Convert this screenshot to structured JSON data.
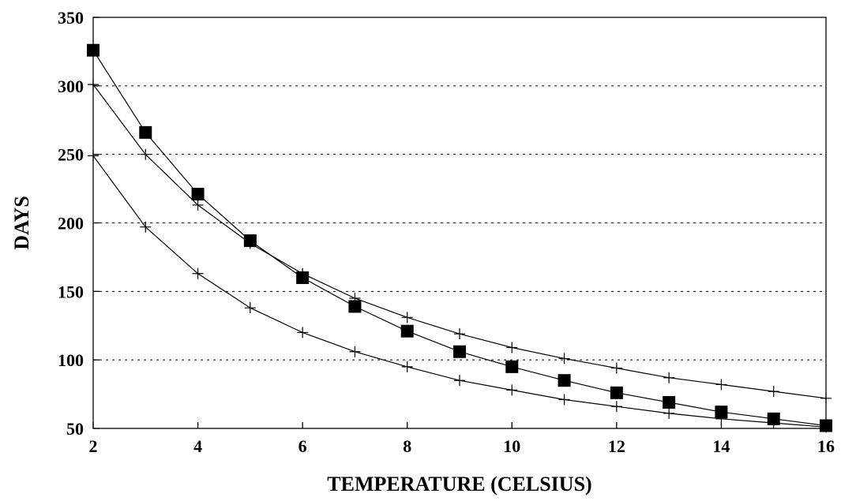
{
  "chart_data": {
    "type": "line",
    "xlabel": "TEMPERATURE (CELSIUS)",
    "ylabel": "DAYS",
    "xlim": [
      2,
      16
    ],
    "ylim": [
      50,
      350
    ],
    "xticks": [
      2,
      4,
      6,
      8,
      10,
      12,
      14,
      16
    ],
    "yticks": [
      50,
      100,
      150,
      200,
      250,
      300,
      350
    ],
    "grid": {
      "horizontal": true,
      "vertical": false,
      "style": "dotted"
    },
    "series": [
      {
        "marker": "square",
        "x": [
          2,
          3,
          4,
          5,
          6,
          7,
          8,
          9,
          10,
          11,
          12,
          13,
          14,
          15,
          16
        ],
        "y": [
          326,
          266,
          221,
          187,
          160,
          139,
          121,
          106,
          95,
          85,
          76,
          69,
          62,
          57,
          52
        ]
      },
      {
        "marker": "plus",
        "x": [
          2,
          3,
          4,
          5,
          6,
          7,
          8,
          9,
          10,
          11,
          12,
          13,
          14,
          15,
          16
        ],
        "y": [
          301,
          250,
          213,
          185,
          163,
          145,
          131,
          119,
          109,
          101,
          94,
          87,
          82,
          77,
          72
        ]
      },
      {
        "marker": "plus",
        "x": [
          2,
          3,
          4,
          5,
          6,
          7,
          8,
          9,
          10,
          11,
          12,
          13,
          14,
          15,
          16
        ],
        "y": [
          249,
          197,
          163,
          138,
          120,
          106,
          95,
          85,
          78,
          71,
          66,
          61,
          57,
          54,
          51
        ]
      }
    ]
  }
}
